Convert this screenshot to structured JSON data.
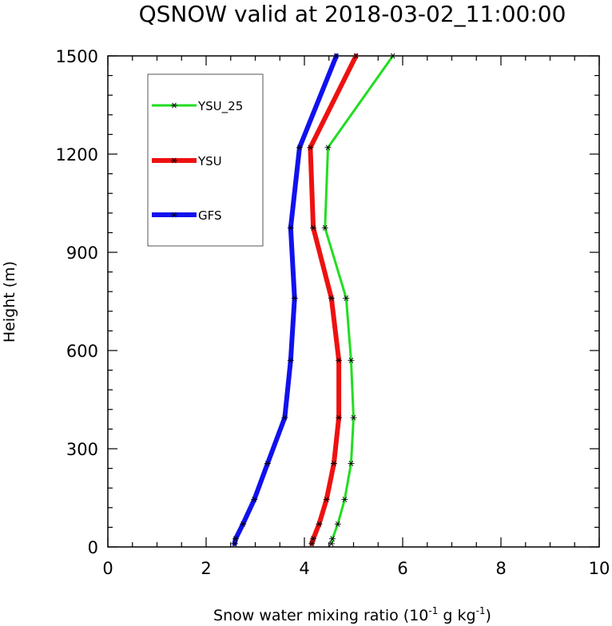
{
  "chart_data": {
    "type": "line",
    "title": "QSNOW valid at 2018-03-02_11:00:00",
    "xlabel": {
      "prefix": "Snow water mixing ratio (10",
      "exp1": "-1",
      "mid": " g kg",
      "exp2": "-1",
      "suffix": ")"
    },
    "ylabel": "Height (m)",
    "xlim": [
      0,
      10
    ],
    "ylim": [
      0,
      1500
    ],
    "xticks": [
      0,
      2,
      4,
      6,
      8,
      10
    ],
    "yticks": [
      0,
      300,
      600,
      900,
      1200,
      1500
    ],
    "grid": false,
    "legend_position": "top-left",
    "y": [
      10,
      25,
      70,
      145,
      255,
      395,
      570,
      760,
      975,
      1220,
      1500
    ],
    "series": [
      {
        "name": "YSU_25",
        "color": "#22dd22",
        "values": [
          4.55,
          4.57,
          4.68,
          4.82,
          4.95,
          5.0,
          4.95,
          4.85,
          4.42,
          4.48,
          5.8
        ]
      },
      {
        "name": "YSU",
        "color": "#ee1111",
        "values": [
          4.15,
          4.18,
          4.3,
          4.45,
          4.6,
          4.7,
          4.7,
          4.55,
          4.18,
          4.12,
          5.05
        ]
      },
      {
        "name": "GFS",
        "color": "#1111ee",
        "values": [
          2.58,
          2.6,
          2.75,
          2.98,
          3.25,
          3.6,
          3.72,
          3.8,
          3.72,
          3.9,
          4.65
        ]
      }
    ]
  }
}
